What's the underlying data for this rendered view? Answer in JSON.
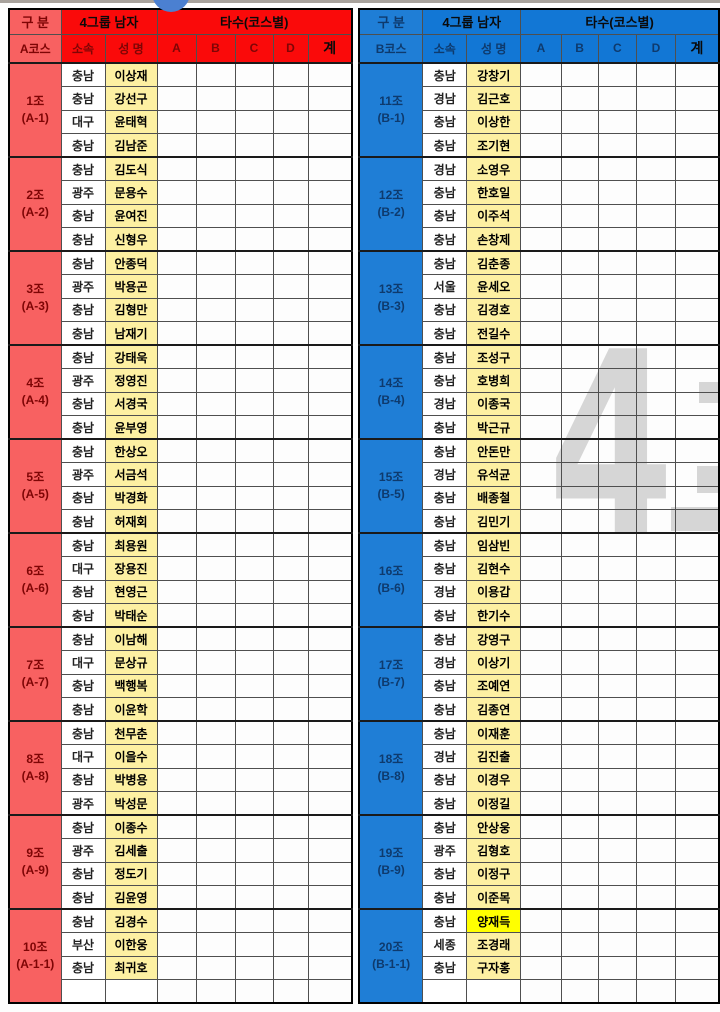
{
  "watermark": {
    "text": "4",
    "color": "#d6d6d6"
  },
  "selection_handle": {
    "color": "#4b80d1"
  },
  "tables": [
    {
      "course": "A코스",
      "header": {
        "gubun": "구 분",
        "group_title": "4그룹 남자",
        "strokes_title": "타수(코스별)",
        "columns": [
          "소속",
          "성 명",
          "A",
          "B",
          "C",
          "D",
          "계"
        ]
      },
      "theme": {
        "header_bg": "#fa0a0a",
        "side_bg": "#f86161",
        "header_text": "#7e0505",
        "title_text": "#0a0a0a",
        "name_bg": "#fdf0a2"
      },
      "groups": [
        {
          "label": "1조",
          "code": "(A-1)",
          "members": [
            {
              "org": "충남",
              "name": "이상재"
            },
            {
              "org": "충남",
              "name": "강선구"
            },
            {
              "org": "대구",
              "name": "윤태혁"
            },
            {
              "org": "충남",
              "name": "김남준"
            }
          ]
        },
        {
          "label": "2조",
          "code": "(A-2)",
          "members": [
            {
              "org": "충남",
              "name": "김도식"
            },
            {
              "org": "광주",
              "name": "문용수"
            },
            {
              "org": "충남",
              "name": "윤여진"
            },
            {
              "org": "충남",
              "name": "신형우"
            }
          ]
        },
        {
          "label": "3조",
          "code": "(A-3)",
          "members": [
            {
              "org": "충남",
              "name": "안종덕"
            },
            {
              "org": "광주",
              "name": "박용곤"
            },
            {
              "org": "충남",
              "name": "김형만"
            },
            {
              "org": "충남",
              "name": "남재기"
            }
          ]
        },
        {
          "label": "4조",
          "code": "(A-4)",
          "members": [
            {
              "org": "충남",
              "name": "강태욱"
            },
            {
              "org": "광주",
              "name": "정영진"
            },
            {
              "org": "충남",
              "name": "서경국"
            },
            {
              "org": "충남",
              "name": "윤부영"
            }
          ]
        },
        {
          "label": "5조",
          "code": "(A-5)",
          "members": [
            {
              "org": "충남",
              "name": "한상오"
            },
            {
              "org": "광주",
              "name": "서금석"
            },
            {
              "org": "충남",
              "name": "박경화"
            },
            {
              "org": "충남",
              "name": "허재회"
            }
          ]
        },
        {
          "label": "6조",
          "code": "(A-6)",
          "members": [
            {
              "org": "충남",
              "name": "최용원"
            },
            {
              "org": "대구",
              "name": "장용진"
            },
            {
              "org": "충남",
              "name": "현영근"
            },
            {
              "org": "충남",
              "name": "박태순"
            }
          ]
        },
        {
          "label": "7조",
          "code": "(A-7)",
          "members": [
            {
              "org": "충남",
              "name": "이남해"
            },
            {
              "org": "대구",
              "name": "문상규"
            },
            {
              "org": "충남",
              "name": "백행복"
            },
            {
              "org": "충남",
              "name": "이윤학"
            }
          ]
        },
        {
          "label": "8조",
          "code": "(A-8)",
          "members": [
            {
              "org": "충남",
              "name": "천무춘"
            },
            {
              "org": "대구",
              "name": "이을수"
            },
            {
              "org": "충남",
              "name": "박병용"
            },
            {
              "org": "광주",
              "name": "박성문"
            }
          ]
        },
        {
          "label": "9조",
          "code": "(A-9)",
          "members": [
            {
              "org": "충남",
              "name": "이종수"
            },
            {
              "org": "광주",
              "name": "김세출"
            },
            {
              "org": "충남",
              "name": "정도기"
            },
            {
              "org": "충남",
              "name": "김윤영"
            }
          ]
        },
        {
          "label": "10조",
          "code": "(A-1-1)",
          "members": [
            {
              "org": "충남",
              "name": "김경수"
            },
            {
              "org": "부산",
              "name": "이한웅"
            },
            {
              "org": "충남",
              "name": "최귀호"
            },
            {
              "org": "",
              "name": ""
            }
          ]
        }
      ]
    },
    {
      "course": "B코스",
      "header": {
        "gubun": "구 분",
        "group_title": "4그룹 남자",
        "strokes_title": "타수(코스별)",
        "columns": [
          "소속",
          "성 명",
          "A",
          "B",
          "C",
          "D",
          "계"
        ]
      },
      "theme": {
        "header_bg": "#1277d5",
        "side_bg": "#1f7ed6",
        "header_text": "#0e3a6d",
        "title_text": "#0a0a0a",
        "name_bg": "#fdf0a2"
      },
      "groups": [
        {
          "label": "11조",
          "code": "(B-1)",
          "members": [
            {
              "org": "충남",
              "name": "강창기"
            },
            {
              "org": "경남",
              "name": "김근호"
            },
            {
              "org": "충남",
              "name": "이상한"
            },
            {
              "org": "충남",
              "name": "조기현"
            }
          ]
        },
        {
          "label": "12조",
          "code": "(B-2)",
          "members": [
            {
              "org": "경남",
              "name": "소영우"
            },
            {
              "org": "충남",
              "name": "한호일"
            },
            {
              "org": "충남",
              "name": "이주석"
            },
            {
              "org": "충남",
              "name": "손창제"
            }
          ]
        },
        {
          "label": "13조",
          "code": "(B-3)",
          "members": [
            {
              "org": "충남",
              "name": "김춘종"
            },
            {
              "org": "서울",
              "name": "윤세오"
            },
            {
              "org": "충남",
              "name": "김경호"
            },
            {
              "org": "충남",
              "name": "전길수"
            }
          ]
        },
        {
          "label": "14조",
          "code": "(B-4)",
          "members": [
            {
              "org": "충남",
              "name": "조성구"
            },
            {
              "org": "충남",
              "name": "호병희"
            },
            {
              "org": "경남",
              "name": "이종국"
            },
            {
              "org": "충남",
              "name": "박근규"
            }
          ]
        },
        {
          "label": "15조",
          "code": "(B-5)",
          "members": [
            {
              "org": "충남",
              "name": "안돈만"
            },
            {
              "org": "경남",
              "name": "유석균"
            },
            {
              "org": "충남",
              "name": "배종철"
            },
            {
              "org": "충남",
              "name": "김민기"
            }
          ]
        },
        {
          "label": "16조",
          "code": "(B-6)",
          "members": [
            {
              "org": "충남",
              "name": "임삼빈"
            },
            {
              "org": "충남",
              "name": "김현수"
            },
            {
              "org": "경남",
              "name": "이용갑"
            },
            {
              "org": "충남",
              "name": "한기수"
            }
          ]
        },
        {
          "label": "17조",
          "code": "(B-7)",
          "members": [
            {
              "org": "충남",
              "name": "강영구"
            },
            {
              "org": "경남",
              "name": "이상기"
            },
            {
              "org": "충남",
              "name": "조예연"
            },
            {
              "org": "충남",
              "name": "김종연"
            }
          ]
        },
        {
          "label": "18조",
          "code": "(B-8)",
          "members": [
            {
              "org": "충남",
              "name": "이재훈"
            },
            {
              "org": "경남",
              "name": "김진출"
            },
            {
              "org": "충남",
              "name": "이경우"
            },
            {
              "org": "충남",
              "name": "이정길"
            }
          ]
        },
        {
          "label": "19조",
          "code": "(B-9)",
          "members": [
            {
              "org": "충남",
              "name": "안상웅"
            },
            {
              "org": "광주",
              "name": "김형호"
            },
            {
              "org": "충남",
              "name": "이정구"
            },
            {
              "org": "충남",
              "name": "이준목"
            }
          ]
        },
        {
          "label": "20조",
          "code": "(B-1-1)",
          "members": [
            {
              "org": "충남",
              "name": "양재득",
              "highlight": true
            },
            {
              "org": "세종",
              "name": "조경래"
            },
            {
              "org": "충남",
              "name": "구자홍"
            },
            {
              "org": "",
              "name": ""
            }
          ]
        }
      ]
    }
  ],
  "highlight_color": "#ffff00"
}
